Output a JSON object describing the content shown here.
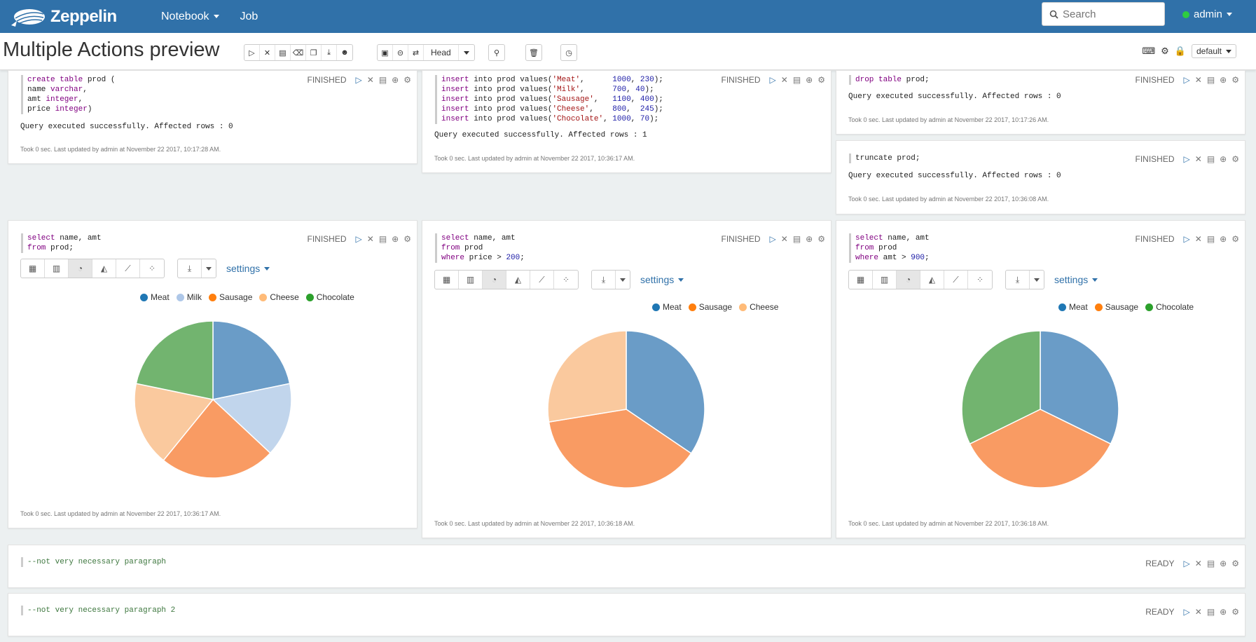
{
  "app": {
    "brand": "Zeppelin"
  },
  "nav": {
    "notebook": "Notebook",
    "job": "Job",
    "search_placeholder": "Search",
    "user": "admin"
  },
  "header": {
    "title": "Multiple Actions preview",
    "head_label": "Head",
    "interpreter": "default"
  },
  "colors": {
    "meat": "#6a9cc7",
    "milk": "#c1d5ec",
    "sausage": "#f99b63",
    "cheese": "#fac99e",
    "chocolate": "#72b46f",
    "meat_legend": "#1f77b4",
    "milk_legend": "#aec7e8",
    "sausage_legend": "#ff7f0e",
    "cheese_legend": "#ffbb78",
    "chocolate_legend": "#2ca02c"
  },
  "paragraphs": {
    "p1": {
      "status": "FINISHED",
      "result": "Query executed successfully. Affected rows : 0",
      "took": "Took 0 sec. Last updated by admin at November 22 2017, 10:17:28 AM."
    },
    "p2": {
      "status": "FINISHED",
      "result": "Query executed successfully. Affected rows : 1",
      "took": "Took 0 sec. Last updated by admin at November 22 2017, 10:36:17 AM."
    },
    "p3": {
      "status": "FINISHED",
      "result": "Query executed successfully. Affected rows : 0",
      "took": "Took 0 sec. Last updated by admin at November 22 2017, 10:17:26 AM."
    },
    "p4": {
      "status": "FINISHED",
      "result": "Query executed successfully. Affected rows : 0",
      "took": "Took 0 sec. Last updated by admin at November 22 2017, 10:36:08 AM."
    },
    "p5": {
      "status": "FINISHED",
      "settings": "settings",
      "took": "Took 0 sec. Last updated by admin at November 22 2017, 10:36:17 AM."
    },
    "p6": {
      "status": "FINISHED",
      "settings": "settings",
      "took": "Took 0 sec. Last updated by admin at November 22 2017, 10:36:18 AM."
    },
    "p7": {
      "status": "FINISHED",
      "settings": "settings",
      "took": "Took 0 sec. Last updated by admin at November 22 2017, 10:36:18 AM."
    },
    "p8": {
      "status": "READY",
      "code": "--not very necessary paragraph"
    },
    "p9": {
      "status": "READY",
      "code": "--not very necessary paragraph 2"
    }
  },
  "chart_data": [
    {
      "type": "pie",
      "categories": [
        "Meat",
        "Milk",
        "Sausage",
        "Cheese",
        "Chocolate"
      ],
      "values": [
        1000,
        700,
        1100,
        800,
        1000
      ]
    },
    {
      "type": "pie",
      "categories": [
        "Meat",
        "Sausage",
        "Cheese"
      ],
      "values": [
        1000,
        1100,
        800
      ]
    },
    {
      "type": "pie",
      "categories": [
        "Meat",
        "Sausage",
        "Chocolate"
      ],
      "values": [
        1000,
        1100,
        1000
      ]
    }
  ]
}
